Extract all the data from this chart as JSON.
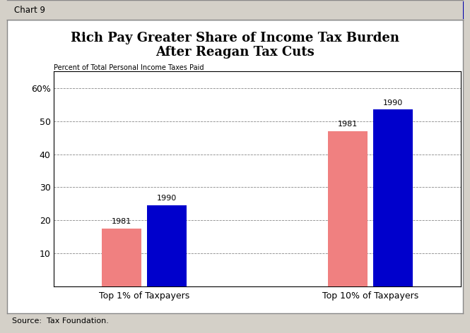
{
  "title_line1": "Rich Pay Greater Share of Income Tax Burden",
  "title_line2": "After Reagan Tax Cuts",
  "ylabel": "Percent of Total Personal Income Taxes Paid",
  "source": "Source:  Tax Foundation.",
  "chart_label": "Chart 9",
  "groups": [
    "Top 1% of Taxpayers",
    "Top 10% of Taxpayers"
  ],
  "years": [
    "1981",
    "1990"
  ],
  "values": [
    [
      17.5,
      24.5
    ],
    [
      47.0,
      53.5
    ]
  ],
  "bar_colors": [
    "#F08080",
    "#0000CC"
  ],
  "ylim": [
    0,
    65
  ],
  "yticks": [
    10,
    20,
    30,
    40,
    50,
    60
  ],
  "background_color": "#FFFFFF",
  "outer_bg": "#D4D0C8",
  "inner_bg": "#FFFFFF",
  "grid_color": "#888888",
  "title_bar_color": "#D4D0C8",
  "bar_width": 0.35,
  "group_positions": [
    1.0,
    3.0
  ]
}
